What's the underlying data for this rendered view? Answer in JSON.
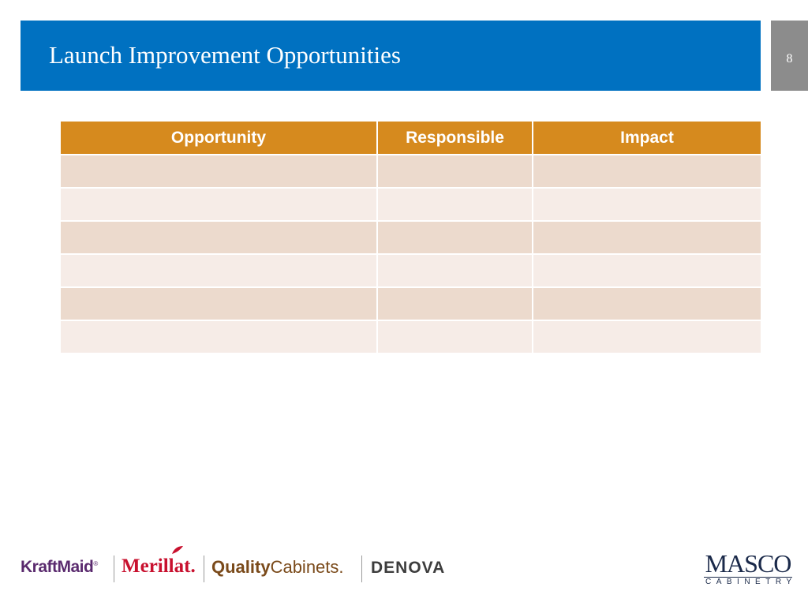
{
  "header": {
    "title": "Launch Improvement Opportunities",
    "page_number": "8"
  },
  "table": {
    "columns": [
      "Opportunity",
      "Responsible",
      "Impact"
    ],
    "rows": [
      [
        "",
        "",
        ""
      ],
      [
        "",
        "",
        ""
      ],
      [
        "",
        "",
        ""
      ],
      [
        "",
        "",
        ""
      ],
      [
        "",
        "",
        ""
      ],
      [
        "",
        "",
        ""
      ]
    ]
  },
  "footer": {
    "brands": {
      "kraftmaid": "KraftMaid",
      "merillat": "Merillat.",
      "quality_bold": "Quality",
      "quality_rest": "Cabinets.",
      "denova": "DENOVA"
    },
    "company": {
      "name": "MASCO",
      "division": "CABINETRY"
    }
  },
  "colors": {
    "title_bar": "#0071c1",
    "page_box": "#8c8c8c",
    "table_header": "#d68a1e",
    "row_odd": "#ecdacd",
    "row_even": "#f6ece7"
  }
}
